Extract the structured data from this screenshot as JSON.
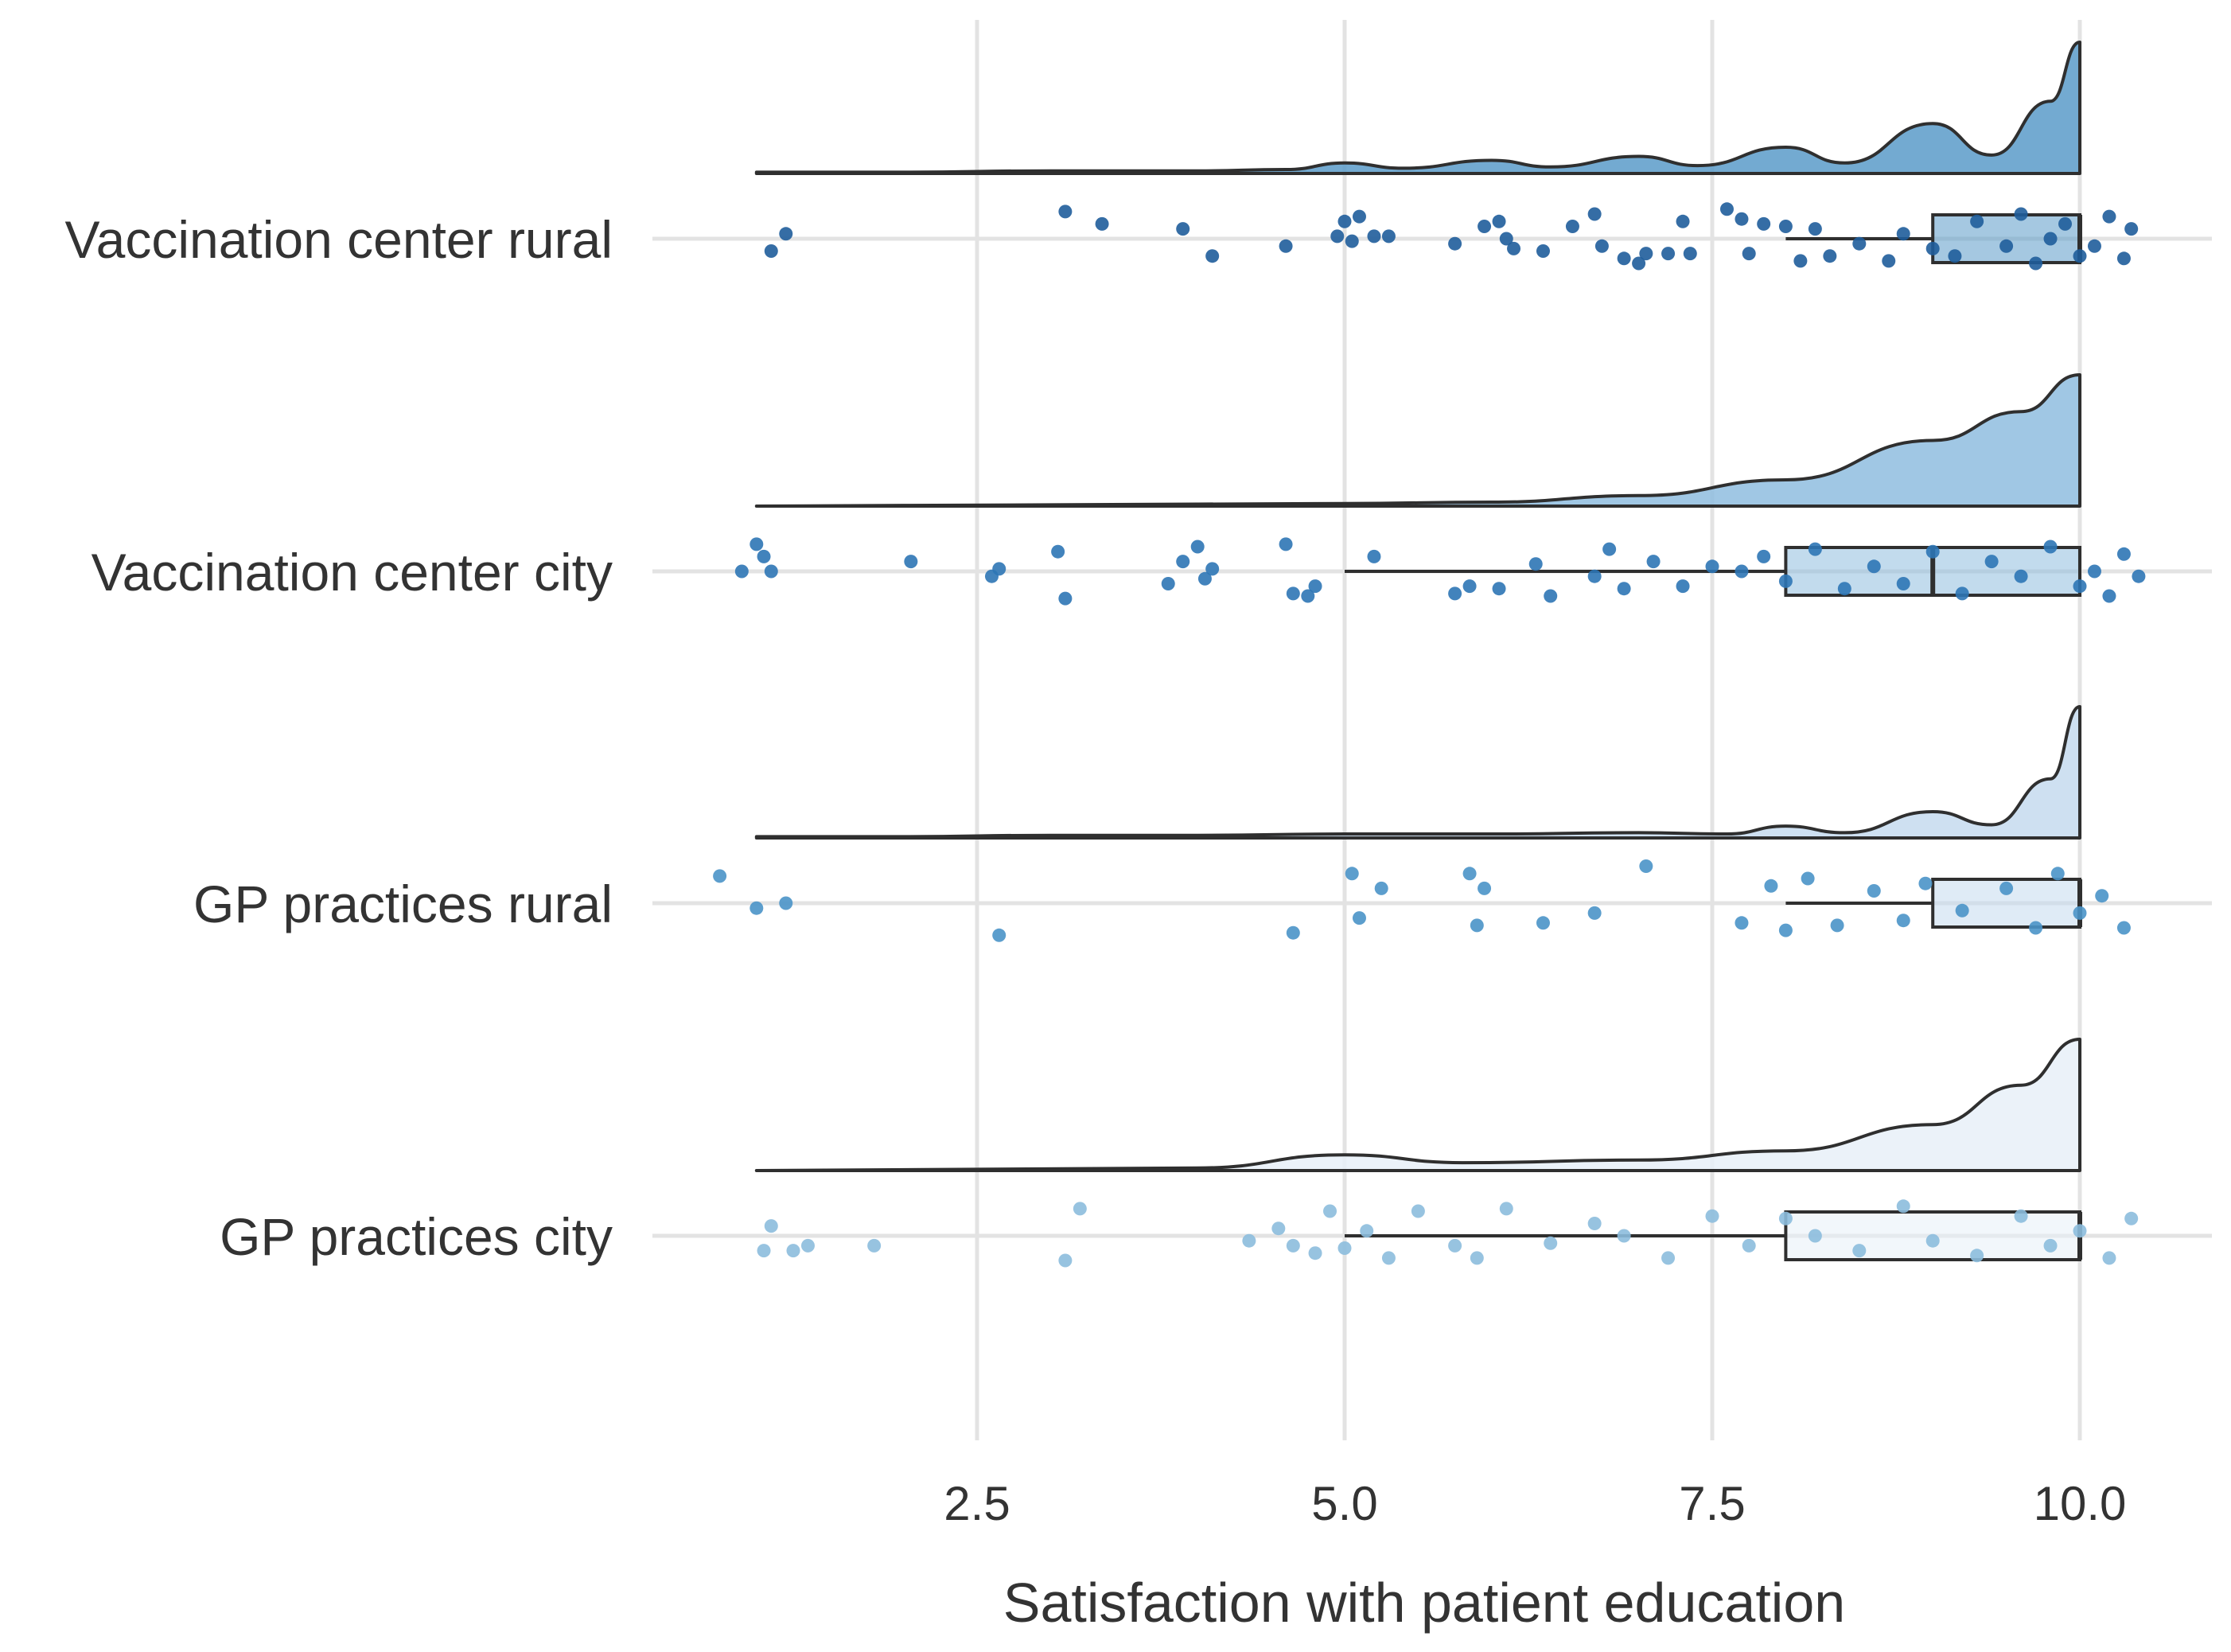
{
  "chart_data": {
    "type": "raincloud",
    "title": "",
    "xlabel": "Satisfaction with patient education",
    "ylabel": "",
    "xlim": [
      0.7,
      10.6
    ],
    "x_ticks": [
      2.5,
      5.0,
      7.5,
      10.0
    ],
    "x_tick_labels": [
      "2.5",
      "5.0",
      "7.5",
      "10.0"
    ],
    "grid": true,
    "legend": "none",
    "groups": [
      {
        "name": "Vaccination center rural",
        "color": "#1f5d9b",
        "fill": "#5b9bc9",
        "box": {
          "min": 8.0,
          "q1": 9.0,
          "median": 10.0,
          "q3": 10.0,
          "max": 10.0
        },
        "density": [
          [
            1,
            0.01
          ],
          [
            2,
            0.01
          ],
          [
            3,
            0.02
          ],
          [
            4,
            0.02
          ],
          [
            4.6,
            0.03
          ],
          [
            5,
            0.08
          ],
          [
            5.4,
            0.04
          ],
          [
            6,
            0.1
          ],
          [
            6.4,
            0.05
          ],
          [
            7,
            0.13
          ],
          [
            7.4,
            0.06
          ],
          [
            8,
            0.2
          ],
          [
            8.4,
            0.08
          ],
          [
            9,
            0.38
          ],
          [
            9.4,
            0.14
          ],
          [
            9.8,
            0.55
          ],
          [
            10,
            1.0
          ]
        ],
        "points": [
          [
            1.1,
            0.25
          ],
          [
            1.2,
            -0.1
          ],
          [
            3.1,
            -0.55
          ],
          [
            3.35,
            -0.3
          ],
          [
            3.9,
            -0.2
          ],
          [
            4.1,
            0.35
          ],
          [
            4.6,
            0.15
          ],
          [
            4.95,
            -0.05
          ],
          [
            5.0,
            -0.35
          ],
          [
            5.05,
            0.05
          ],
          [
            5.1,
            -0.45
          ],
          [
            5.2,
            -0.05
          ],
          [
            5.3,
            -0.05
          ],
          [
            5.75,
            0.1
          ],
          [
            5.95,
            -0.25
          ],
          [
            6.05,
            -0.35
          ],
          [
            6.1,
            0.0
          ],
          [
            6.15,
            0.2
          ],
          [
            6.35,
            0.25
          ],
          [
            6.55,
            -0.25
          ],
          [
            6.7,
            -0.5
          ],
          [
            6.75,
            0.15
          ],
          [
            6.9,
            0.4
          ],
          [
            7.0,
            0.5
          ],
          [
            7.05,
            0.3
          ],
          [
            7.2,
            0.3
          ],
          [
            7.3,
            -0.35
          ],
          [
            7.35,
            0.3
          ],
          [
            7.6,
            -0.6
          ],
          [
            7.7,
            -0.4
          ],
          [
            7.75,
            0.3
          ],
          [
            7.85,
            -0.3
          ],
          [
            8.0,
            -0.25
          ],
          [
            8.1,
            0.45
          ],
          [
            8.2,
            -0.2
          ],
          [
            8.3,
            0.35
          ],
          [
            8.5,
            0.1
          ],
          [
            8.7,
            0.45
          ],
          [
            8.8,
            -0.1
          ],
          [
            9.0,
            0.2
          ],
          [
            9.15,
            0.35
          ],
          [
            9.3,
            -0.35
          ],
          [
            9.5,
            0.15
          ],
          [
            9.6,
            -0.5
          ],
          [
            9.7,
            0.5
          ],
          [
            9.8,
            0.0
          ],
          [
            9.9,
            -0.3
          ],
          [
            10.0,
            0.35
          ],
          [
            10.1,
            0.15
          ],
          [
            10.2,
            -0.45
          ],
          [
            10.3,
            0.4
          ],
          [
            10.35,
            -0.2
          ]
        ]
      },
      {
        "name": "Vaccination center city",
        "color": "#2e76b5",
        "fill": "#8fbddf",
        "box": {
          "min": 5.0,
          "q1": 8.0,
          "median": 9.0,
          "q3": 10.0,
          "max": 10.0
        },
        "density": [
          [
            1,
            0.0
          ],
          [
            3,
            0.01
          ],
          [
            5,
            0.02
          ],
          [
            6,
            0.03
          ],
          [
            7,
            0.08
          ],
          [
            8,
            0.2
          ],
          [
            9,
            0.5
          ],
          [
            9.6,
            0.72
          ],
          [
            10,
            1.0
          ]
        ],
        "points": [
          [
            0.9,
            0.0
          ],
          [
            1.0,
            -0.55
          ],
          [
            1.05,
            -0.3
          ],
          [
            1.1,
            0.0
          ],
          [
            2.05,
            -0.2
          ],
          [
            2.6,
            0.1
          ],
          [
            2.65,
            -0.05
          ],
          [
            3.05,
            -0.4
          ],
          [
            3.1,
            0.55
          ],
          [
            3.8,
            0.25
          ],
          [
            3.9,
            -0.2
          ],
          [
            4.0,
            -0.5
          ],
          [
            4.05,
            0.15
          ],
          [
            4.1,
            -0.05
          ],
          [
            4.6,
            -0.55
          ],
          [
            4.65,
            0.45
          ],
          [
            4.75,
            0.5
          ],
          [
            4.8,
            0.3
          ],
          [
            5.2,
            -0.3
          ],
          [
            5.75,
            0.45
          ],
          [
            5.85,
            0.3
          ],
          [
            6.05,
            0.35
          ],
          [
            6.3,
            -0.15
          ],
          [
            6.4,
            0.5
          ],
          [
            6.7,
            0.1
          ],
          [
            6.8,
            -0.45
          ],
          [
            6.9,
            0.35
          ],
          [
            7.1,
            -0.2
          ],
          [
            7.3,
            0.3
          ],
          [
            7.5,
            -0.1
          ],
          [
            7.7,
            0.0
          ],
          [
            7.85,
            -0.3
          ],
          [
            8.0,
            0.2
          ],
          [
            8.2,
            -0.45
          ],
          [
            8.4,
            0.35
          ],
          [
            8.6,
            -0.1
          ],
          [
            8.8,
            0.25
          ],
          [
            9.0,
            -0.4
          ],
          [
            9.2,
            0.45
          ],
          [
            9.4,
            -0.2
          ],
          [
            9.6,
            0.1
          ],
          [
            9.8,
            -0.5
          ],
          [
            10.0,
            0.3
          ],
          [
            10.1,
            0.0
          ],
          [
            10.2,
            0.5
          ],
          [
            10.3,
            -0.35
          ],
          [
            10.4,
            0.1
          ]
        ]
      },
      {
        "name": "GP practices rural",
        "color": "#4a93c8",
        "fill": "#c5daee",
        "box": {
          "min": 8.0,
          "q1": 9.0,
          "median": 10.0,
          "q3": 10.0,
          "max": 10.0
        },
        "density": [
          [
            1,
            0.01
          ],
          [
            2,
            0.01
          ],
          [
            3,
            0.02
          ],
          [
            4,
            0.02
          ],
          [
            5,
            0.03
          ],
          [
            6,
            0.03
          ],
          [
            7,
            0.04
          ],
          [
            7.6,
            0.03
          ],
          [
            8,
            0.09
          ],
          [
            8.4,
            0.04
          ],
          [
            9,
            0.2
          ],
          [
            9.4,
            0.1
          ],
          [
            9.8,
            0.45
          ],
          [
            10,
            1.0
          ]
        ],
        "points": [
          [
            0.75,
            -0.55
          ],
          [
            1.0,
            0.1
          ],
          [
            1.2,
            0.0
          ],
          [
            2.65,
            0.65
          ],
          [
            4.65,
            0.6
          ],
          [
            5.05,
            -0.6
          ],
          [
            5.1,
            0.3
          ],
          [
            5.25,
            -0.3
          ],
          [
            5.85,
            -0.6
          ],
          [
            5.9,
            0.45
          ],
          [
            5.95,
            -0.3
          ],
          [
            6.35,
            0.4
          ],
          [
            6.7,
            0.2
          ],
          [
            7.05,
            -0.75
          ],
          [
            7.7,
            0.4
          ],
          [
            7.9,
            -0.35
          ],
          [
            8.0,
            0.55
          ],
          [
            8.15,
            -0.5
          ],
          [
            8.35,
            0.45
          ],
          [
            8.6,
            -0.25
          ],
          [
            8.8,
            0.35
          ],
          [
            8.95,
            -0.4
          ],
          [
            9.2,
            0.15
          ],
          [
            9.5,
            -0.3
          ],
          [
            9.7,
            0.5
          ],
          [
            9.85,
            -0.6
          ],
          [
            10.0,
            0.2
          ],
          [
            10.15,
            -0.15
          ],
          [
            10.3,
            0.5
          ]
        ]
      },
      {
        "name": "GP practices city",
        "color": "#8cbcdd",
        "fill": "#e8f0f8",
        "box": {
          "min": 5.0,
          "q1": 8.0,
          "median": 10.0,
          "q3": 10.0,
          "max": 10.0
        },
        "density": [
          [
            1,
            0.0
          ],
          [
            4,
            0.02
          ],
          [
            5,
            0.12
          ],
          [
            5.8,
            0.06
          ],
          [
            7,
            0.08
          ],
          [
            8,
            0.15
          ],
          [
            9,
            0.35
          ],
          [
            9.6,
            0.65
          ],
          [
            10,
            1.0
          ]
        ],
        "points": [
          [
            1.05,
            0.3
          ],
          [
            1.1,
            -0.2
          ],
          [
            1.25,
            0.3
          ],
          [
            1.35,
            0.2
          ],
          [
            1.8,
            0.2
          ],
          [
            3.1,
            0.5
          ],
          [
            3.2,
            -0.55
          ],
          [
            4.35,
            0.1
          ],
          [
            4.55,
            -0.15
          ],
          [
            4.65,
            0.2
          ],
          [
            4.8,
            0.35
          ],
          [
            4.9,
            -0.5
          ],
          [
            5.0,
            0.25
          ],
          [
            5.15,
            -0.1
          ],
          [
            5.3,
            0.45
          ],
          [
            5.5,
            -0.5
          ],
          [
            5.75,
            0.2
          ],
          [
            5.9,
            0.45
          ],
          [
            6.1,
            -0.55
          ],
          [
            6.4,
            0.15
          ],
          [
            6.7,
            -0.25
          ],
          [
            6.9,
            0.0
          ],
          [
            7.2,
            0.45
          ],
          [
            7.5,
            -0.4
          ],
          [
            7.75,
            0.2
          ],
          [
            8.0,
            -0.35
          ],
          [
            8.2,
            0.0
          ],
          [
            8.5,
            0.3
          ],
          [
            8.8,
            -0.6
          ],
          [
            9.0,
            0.1
          ],
          [
            9.3,
            0.4
          ],
          [
            9.6,
            -0.4
          ],
          [
            9.8,
            0.2
          ],
          [
            10.0,
            -0.1
          ],
          [
            10.2,
            0.45
          ],
          [
            10.35,
            -0.35
          ]
        ]
      }
    ]
  }
}
